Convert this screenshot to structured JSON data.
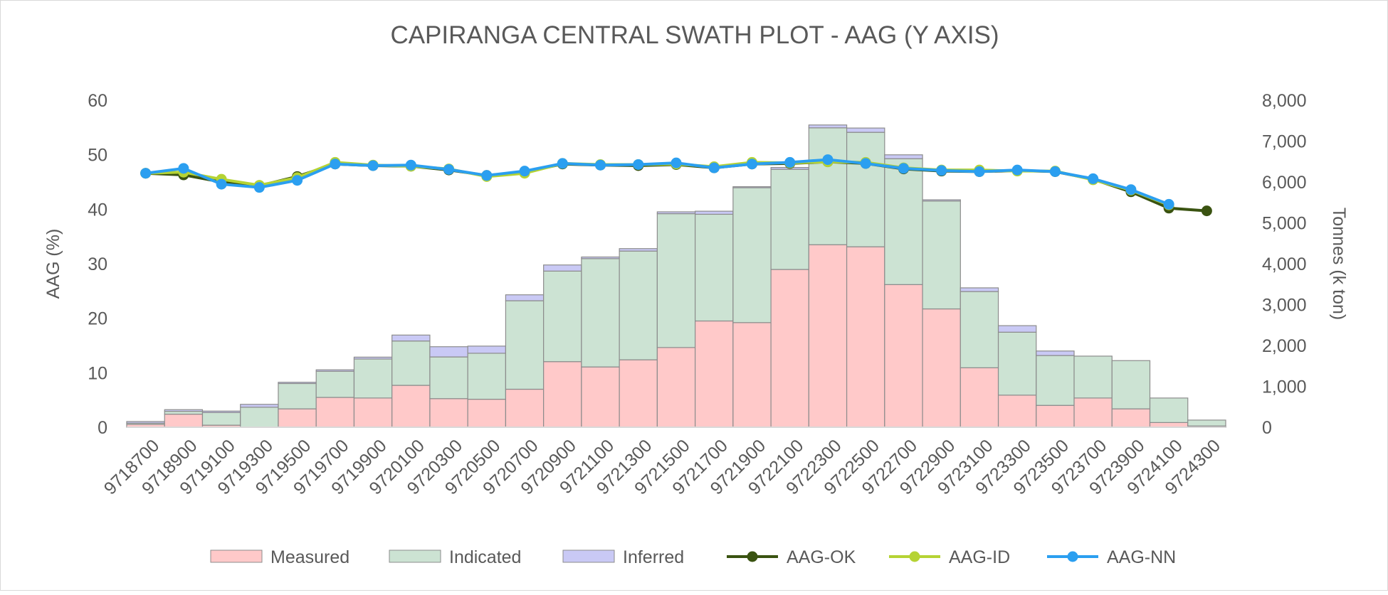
{
  "chart_data": {
    "type": "bar",
    "title": "CAPIRANGA CENTRAL SWATH PLOT - AAG (Y AXIS)",
    "ylabel": "AAG (%)",
    "y2label": "Tonnes (k ton)",
    "ylim": [
      0,
      60
    ],
    "y2lim": [
      0,
      8000
    ],
    "yticks": [
      "0",
      "10",
      "20",
      "30",
      "40",
      "50",
      "60"
    ],
    "y2ticks": [
      "0",
      "1,000",
      "2,000",
      "3,000",
      "4,000",
      "5,000",
      "6,000",
      "7,000",
      "8,000"
    ],
    "categories": [
      "9718700",
      "9718900",
      "9719100",
      "9719300",
      "9719500",
      "9719700",
      "9719900",
      "9720100",
      "9720300",
      "9720500",
      "9720700",
      "9720900",
      "9721100",
      "9721300",
      "9721500",
      "9721700",
      "9721900",
      "9722100",
      "9722300",
      "9722500",
      "9722700",
      "9722900",
      "9723100",
      "9723300",
      "9723500",
      "9723700",
      "9723900",
      "9724100",
      "9724300"
    ],
    "bar_series": [
      {
        "name": "Measured",
        "color": "#ffc9c9",
        "values": [
          70,
          320,
          50,
          0,
          450,
          730,
          715,
          1025,
          700,
          685,
          930,
          1605,
          1475,
          1650,
          1950,
          2600,
          2560,
          3860,
          4465,
          4415,
          3490,
          2895,
          1455,
          785,
          535,
          715,
          450,
          115,
          30
        ]
      },
      {
        "name": "Indicated",
        "color": "#cce3d3",
        "values": [
          30,
          70,
          310,
          490,
          620,
          640,
          955,
          1085,
          1020,
          1125,
          2165,
          2215,
          2650,
          2660,
          3275,
          2610,
          3300,
          2450,
          2860,
          2800,
          3080,
          2640,
          1865,
          1540,
          1220,
          1025,
          1180,
          600,
          145
        ]
      },
      {
        "name": "Inferred",
        "color": "#c9c9f5",
        "values": [
          40,
          40,
          35,
          70,
          30,
          35,
          45,
          145,
          250,
          175,
          145,
          150,
          40,
          60,
          45,
          75,
          25,
          45,
          70,
          105,
          95,
          30,
          90,
          160,
          110,
          0,
          0,
          0,
          0
        ]
      }
    ],
    "line_series": [
      {
        "name": "AAG-OK",
        "color": "#3a5311",
        "values": [
          46.6,
          46.3,
          45.0,
          44.3,
          46.0,
          48.3,
          48.0,
          47.9,
          47.2,
          46.2,
          46.8,
          48.3,
          48.1,
          48.0,
          48.2,
          47.6,
          48.3,
          48.4,
          48.7,
          48.4,
          47.4,
          47.0,
          46.9,
          47.1,
          46.9,
          45.5,
          43.2,
          40.2,
          39.7
        ]
      },
      {
        "name": "AAG-ID",
        "color": "#b5d334",
        "values": [
          46.6,
          46.8,
          45.5,
          44.4,
          45.8,
          48.6,
          48.1,
          47.9,
          47.4,
          46.0,
          46.6,
          48.4,
          48.2,
          48.2,
          48.3,
          47.8,
          48.6,
          48.5,
          48.7,
          48.6,
          47.6,
          47.2,
          47.2,
          47.0,
          47.0,
          45.4,
          43.5,
          40.8,
          null
        ]
      },
      {
        "name": "AAG-NN",
        "color": "#2b9ff0",
        "values": [
          46.6,
          47.5,
          44.6,
          44.0,
          45.3,
          48.3,
          48.0,
          48.1,
          47.3,
          46.2,
          47.0,
          48.4,
          48.1,
          48.2,
          48.5,
          47.6,
          48.3,
          48.6,
          49.1,
          48.4,
          47.5,
          47.1,
          46.9,
          47.2,
          46.9,
          45.6,
          43.6,
          40.9,
          null
        ]
      }
    ],
    "legend": [
      "Measured",
      "Indicated",
      "Inferred",
      "AAG-OK",
      "AAG-ID",
      "AAG-NN"
    ],
    "legend_position": "bottom",
    "grid": false
  }
}
